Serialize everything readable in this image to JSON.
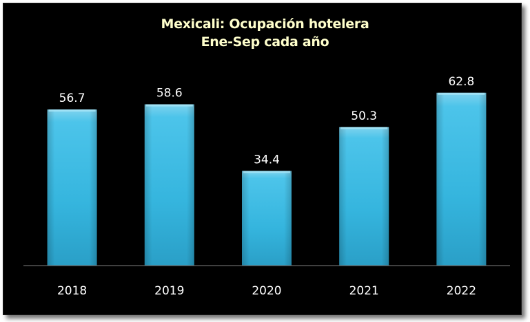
{
  "chart_data": {
    "type": "bar",
    "title": "Mexicali: Ocupación hotelera",
    "subtitle": "Ene-Sep cada año",
    "categories": [
      "2018",
      "2019",
      "2020",
      "2021",
      "2022"
    ],
    "values": [
      56.7,
      58.6,
      34.4,
      50.3,
      62.8
    ],
    "value_labels": [
      "56.7",
      "58.6",
      "34.4",
      "50.3",
      "62.8"
    ],
    "xlabel": "",
    "ylabel": "",
    "ylim": [
      0,
      70
    ],
    "grid": false,
    "legend": "none",
    "colors": {
      "background": "#000000",
      "bar_top": "#7fd3ee",
      "bar_mid": "#3fbde4",
      "bar_bottom": "#1f8fb5",
      "title": "#ffffcc",
      "text": "#ffffff",
      "axis": "#7f7f7f"
    }
  }
}
